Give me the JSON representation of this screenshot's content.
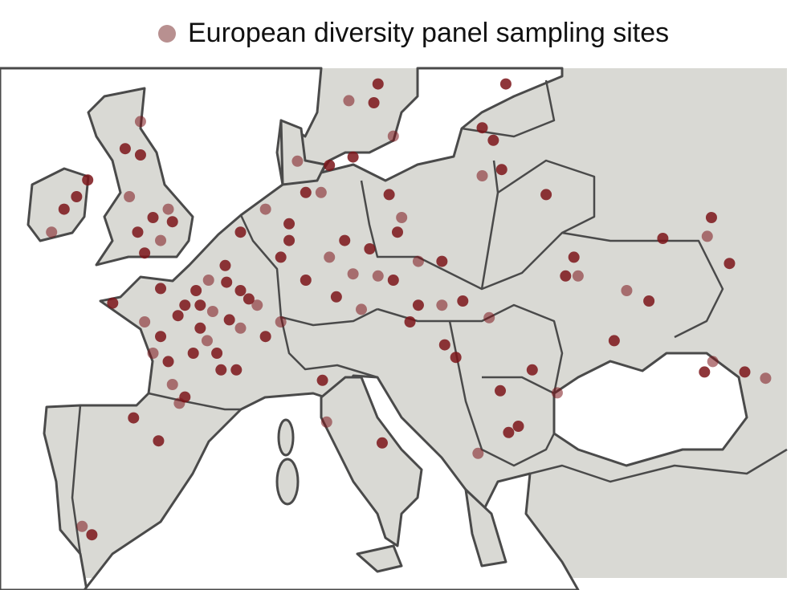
{
  "legend": {
    "label": "European diversity panel sampling sites",
    "color": "#b89090"
  },
  "site_color": "#7b1419",
  "sites": [
    [
      -2.2,
      57.1
    ],
    [
      -3.3,
      55.8
    ],
    [
      -2.2,
      55.5
    ],
    [
      -3,
      53.5
    ],
    [
      -1.3,
      52.5
    ],
    [
      -2.4,
      51.8
    ],
    [
      -0.75,
      51.4
    ],
    [
      0.1,
      52.3
    ],
    [
      -1.9,
      50.8
    ],
    [
      -0.2,
      52.9
    ],
    [
      -7.7,
      52.9
    ],
    [
      -6.8,
      53.5
    ],
    [
      -8.6,
      51.8
    ],
    [
      -6,
      54.3
    ],
    [
      -4.2,
      48.4
    ],
    [
      -1.9,
      47.5
    ],
    [
      -0.75,
      46.8
    ],
    [
      1,
      48.3
    ],
    [
      2.7,
      49.5
    ],
    [
      3.9,
      50.2
    ],
    [
      5,
      49
    ],
    [
      6.2,
      48.3
    ],
    [
      2.1,
      47.2
    ],
    [
      3.3,
      46
    ],
    [
      5,
      47.2
    ],
    [
      6.8,
      46.8
    ],
    [
      1.6,
      46
    ],
    [
      0.1,
      44.5
    ],
    [
      1,
      43.9
    ],
    [
      4.7,
      45.2
    ],
    [
      7.9,
      47.5
    ],
    [
      -0.75,
      49.1
    ],
    [
      2.1,
      48.3
    ],
    [
      -1.3,
      46
    ],
    [
      0.5,
      47.8
    ],
    [
      1.8,
      49.0
    ],
    [
      3.0,
      48.0
    ],
    [
      4.2,
      47.6
    ],
    [
      -0.2,
      45.6
    ],
    [
      2.6,
      46.6
    ],
    [
      4.0,
      49.4
    ],
    [
      5.6,
      48.6
    ],
    [
      0.6,
      43.6
    ],
    [
      3.6,
      45.2
    ],
    [
      5,
      51.8
    ],
    [
      6.8,
      52.9
    ],
    [
      8.5,
      52.2
    ],
    [
      9.7,
      53.7
    ],
    [
      10.8,
      53.7
    ],
    [
      12.5,
      51.4
    ],
    [
      14.3,
      51
    ],
    [
      11.4,
      50.6
    ],
    [
      9.7,
      49.5
    ],
    [
      8.5,
      51.4
    ],
    [
      13.1,
      49.8
    ],
    [
      11.9,
      48.7
    ],
    [
      7.9,
      50.6
    ],
    [
      9.1,
      55.2
    ],
    [
      11.4,
      55
    ],
    [
      13.1,
      55.4
    ],
    [
      12.8,
      58.1
    ],
    [
      14.6,
      58
    ],
    [
      14.9,
      58.9
    ],
    [
      16,
      56.4
    ],
    [
      23.2,
      56.2
    ],
    [
      23.8,
      54.8
    ],
    [
      22.4,
      54.5
    ],
    [
      22.4,
      56.8
    ],
    [
      24.1,
      58.9
    ],
    [
      16.6,
      52.5
    ],
    [
      16.3,
      51.8
    ],
    [
      15.7,
      53.6
    ],
    [
      17.8,
      50.4
    ],
    [
      19.5,
      50.4
    ],
    [
      27,
      53.6
    ],
    [
      14.9,
      49.7
    ],
    [
      16,
      49.5
    ],
    [
      17.8,
      48.3
    ],
    [
      19.5,
      48.3
    ],
    [
      21,
      48.5
    ],
    [
      17.2,
      47.5
    ],
    [
      13.7,
      48.1
    ],
    [
      19.7,
      46.4
    ],
    [
      20.5,
      45.8
    ],
    [
      22.9,
      47.7
    ],
    [
      26,
      45.2
    ],
    [
      23.7,
      44.2
    ],
    [
      27.8,
      44.1
    ],
    [
      25,
      42.5
    ],
    [
      24.3,
      42.2
    ],
    [
      22.1,
      41.2
    ],
    [
      15.2,
      41.7
    ],
    [
      10.9,
      44.7
    ],
    [
      11.2,
      42.7
    ],
    [
      -2.7,
      42.9
    ],
    [
      -0.9,
      41.8
    ],
    [
      -6.4,
      37.7
    ],
    [
      -5.7,
      37.3
    ],
    [
      28.4,
      49.7
    ],
    [
      29.3,
      49.7
    ],
    [
      29,
      50.6
    ],
    [
      35.4,
      51.5
    ],
    [
      38.6,
      51.6
    ],
    [
      38.9,
      52.5
    ],
    [
      40.2,
      50.3
    ],
    [
      32.8,
      49
    ],
    [
      34.4,
      48.5
    ],
    [
      31.9,
      46.6
    ],
    [
      39,
      45.6
    ],
    [
      38.4,
      45.1
    ],
    [
      41.3,
      45.1
    ],
    [
      42.8,
      44.8
    ]
  ]
}
